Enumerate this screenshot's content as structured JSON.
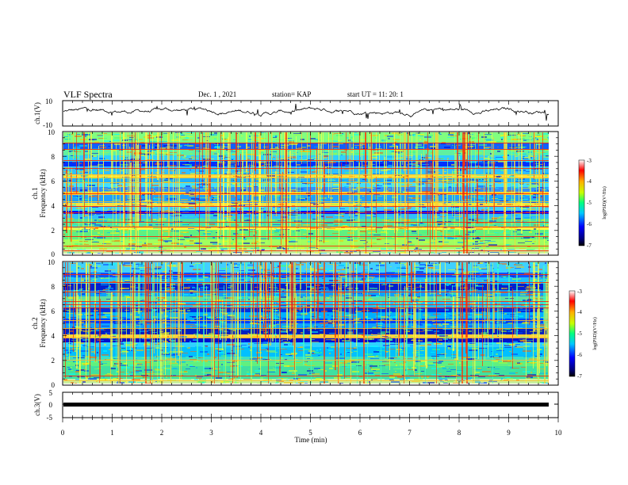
{
  "header": {
    "title": "VLF Spectra",
    "date": "Dec. 1  , 2021",
    "station": "station= KAP",
    "start": "start  UT =   11: 20: 1"
  },
  "chart_data": [
    {
      "type": "line",
      "ylabel": "ch.1(V)",
      "ylim": [
        -10,
        10
      ],
      "yticks": [
        "10",
        "-10"
      ],
      "xlim": [
        0,
        10
      ],
      "note": "voltage waveform trace between about -2 and 6 V"
    },
    {
      "type": "heatmap",
      "ylabel": "ch.1\nFrequency (kHz)",
      "ylabel_line1": "ch.1",
      "ylabel_line2": "Frequency (kHz)",
      "ylim": [
        0,
        10
      ],
      "yticks": [
        "0",
        "2",
        "4",
        "6",
        "8",
        "10"
      ],
      "xlim": [
        0,
        10
      ],
      "colorbar": {
        "label": "log(PSD)(V²/Hz)",
        "range": [
          -7,
          -3
        ],
        "ticks": [
          "-3",
          "-4",
          "-5",
          "-6",
          "-7"
        ]
      }
    },
    {
      "type": "heatmap",
      "ylabel": "ch.2\nFrequency (kHz)",
      "ylabel_line1": "ch.2",
      "ylabel_line2": "Frequency (kHz)",
      "ylim": [
        0,
        10
      ],
      "yticks": [
        "0",
        "2",
        "4",
        "6",
        "8",
        "10"
      ],
      "xlim": [
        0,
        10
      ],
      "colorbar": {
        "label": "log(PSD)(V²/Hz)",
        "range": [
          -7,
          -3
        ],
        "ticks": [
          "-3",
          "-4",
          "-5",
          "-6",
          "-7"
        ]
      }
    },
    {
      "type": "line",
      "ylabel": "ch.3(V)",
      "ylim": [
        -5,
        5
      ],
      "yticks": [
        "5",
        "0",
        "-5"
      ],
      "xlim": [
        0,
        10
      ],
      "note": "flat trace at about -1 V"
    }
  ],
  "xaxis": {
    "label": "Time  (min)",
    "ticks": [
      "0",
      "1",
      "2",
      "3",
      "4",
      "5",
      "6",
      "7",
      "8",
      "9",
      "10"
    ]
  },
  "colors": {
    "colormap": [
      "#00007f",
      "#0000ff",
      "#00a0ff",
      "#00ffff",
      "#7fff7f",
      "#ffff00",
      "#ff7f00",
      "#ff0000",
      "#ffffff"
    ],
    "trace": "#000000"
  }
}
